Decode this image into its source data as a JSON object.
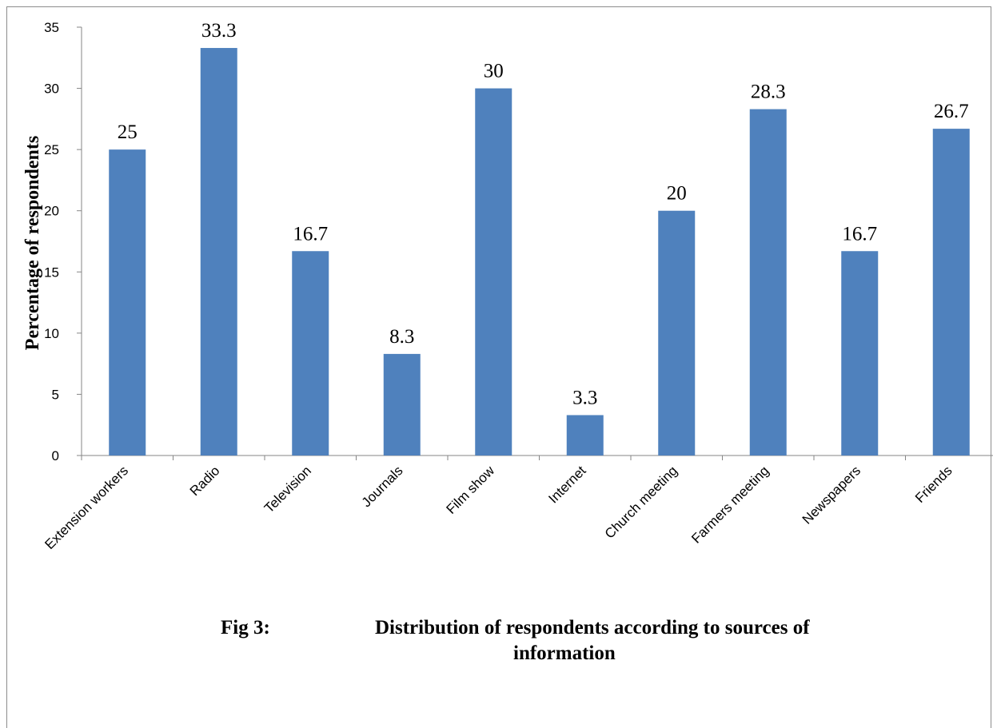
{
  "chart_data": {
    "type": "bar",
    "categories": [
      "Extension workers",
      "Radio",
      "Television",
      "Journals",
      "Film show",
      "Internet",
      "Church meeting",
      "Farmers meeting",
      "Newspapers",
      "Friends"
    ],
    "values": [
      25,
      33.3,
      16.7,
      8.3,
      30,
      3.3,
      20,
      28.3,
      16.7,
      26.7
    ],
    "data_labels": [
      "25",
      "33.3",
      "16.7",
      "8.3",
      "30",
      "3.3",
      "20",
      "28.3",
      "16.7",
      "26.7"
    ],
    "ylabel": "Percentage of respondents",
    "xlabel": "",
    "ylim": [
      0,
      35
    ],
    "yticks": [
      0,
      5,
      10,
      15,
      20,
      25,
      30,
      35
    ],
    "bar_color": "#4f81bd",
    "grid": false,
    "legend": "none"
  },
  "caption": {
    "label": "Fig 3:",
    "line1": "Distribution of respondents according to sources of",
    "line2": "information"
  }
}
